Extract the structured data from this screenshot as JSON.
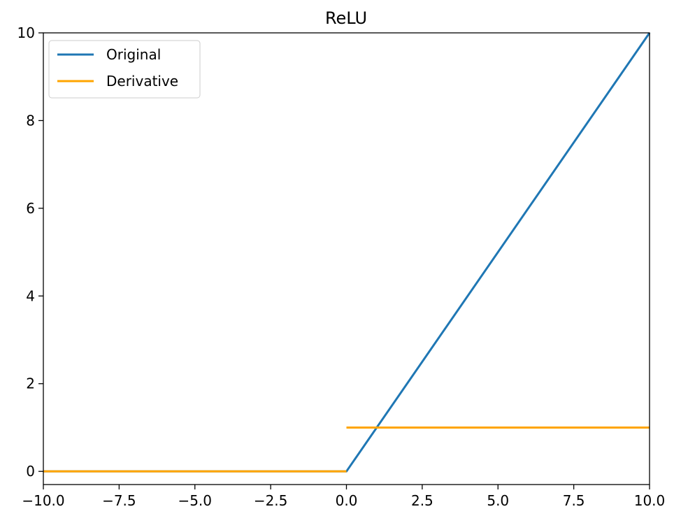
{
  "chart_data": {
    "type": "line",
    "title": "ReLU",
    "xlabel": "",
    "ylabel": "",
    "xlim": [
      -10,
      10
    ],
    "ylim": [
      -0.3,
      10
    ],
    "grid": false,
    "legend_position": "top-left",
    "x_ticks": [
      {
        "value": -10,
        "label": "−10.0"
      },
      {
        "value": -7.5,
        "label": "−7.5"
      },
      {
        "value": -5,
        "label": "−5.0"
      },
      {
        "value": -2.5,
        "label": "−2.5"
      },
      {
        "value": 0,
        "label": "0.0"
      },
      {
        "value": 2.5,
        "label": "2.5"
      },
      {
        "value": 5,
        "label": "5.0"
      },
      {
        "value": 7.5,
        "label": "7.5"
      },
      {
        "value": 10,
        "label": "10.0"
      }
    ],
    "y_ticks": [
      {
        "value": 0,
        "label": "0"
      },
      {
        "value": 2,
        "label": "2"
      },
      {
        "value": 4,
        "label": "4"
      },
      {
        "value": 6,
        "label": "6"
      },
      {
        "value": 8,
        "label": "8"
      },
      {
        "value": 10,
        "label": "10"
      }
    ],
    "series": [
      {
        "name": "Original",
        "color": "#1f77b4",
        "points": [
          [
            -10,
            0
          ],
          [
            0,
            0
          ],
          [
            10,
            10
          ]
        ]
      },
      {
        "name": "Derivative",
        "color": "#ffa500",
        "segments": [
          [
            [
              -10,
              0
            ],
            [
              0,
              0
            ]
          ],
          [
            [
              0,
              1
            ],
            [
              10,
              1
            ]
          ]
        ]
      }
    ]
  }
}
